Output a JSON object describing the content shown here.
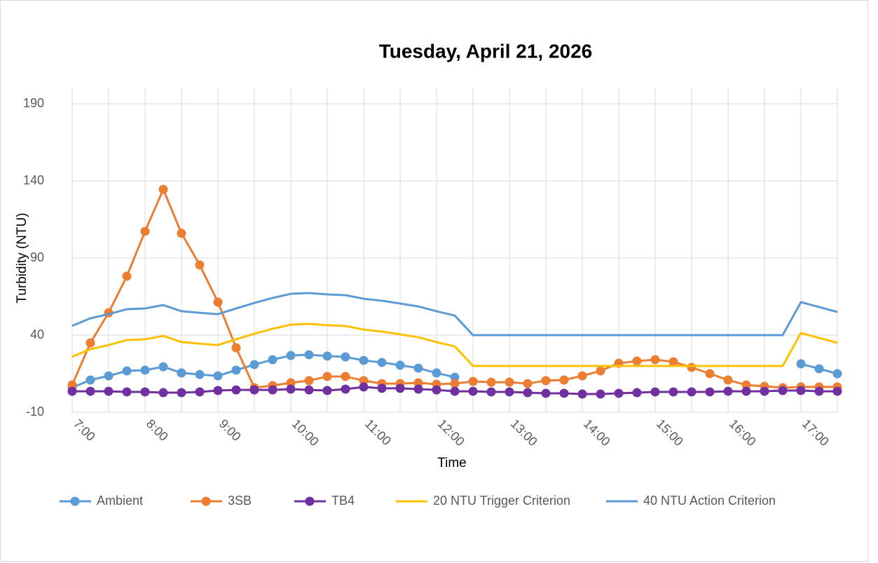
{
  "chart_data": {
    "type": "line",
    "title": "Tuesday, April 21, 2026",
    "x_label": "Time",
    "y_label": "Turbidity (NTU)",
    "categories": [
      "7:00",
      null,
      null,
      null,
      "8:00",
      null,
      null,
      null,
      "9:00",
      null,
      null,
      null,
      "10:00",
      null,
      null,
      null,
      "11:00",
      null,
      null,
      null,
      "12:00",
      null,
      null,
      null,
      "13:00",
      null,
      null,
      null,
      "14:00",
      null,
      null,
      null,
      "15:00",
      null,
      null,
      null,
      "16:00",
      null,
      null,
      null,
      "17:00",
      null,
      null
    ],
    "ylim": [
      -10,
      200
    ],
    "yticks": [
      -10,
      40,
      90,
      140,
      190
    ],
    "grid": true,
    "legend": "bottom",
    "series": [
      {
        "name": "Ambient",
        "color": "#5b9bd5",
        "marker": true,
        "values": [
          6,
          10.9,
          13.6,
          16.8,
          17.3,
          19.5,
          15.5,
          14.5,
          13.6,
          17.3,
          20.9,
          24.1,
          26.8,
          27.3,
          26.4,
          25.9,
          23.6,
          22.3,
          20.5,
          18.6,
          15.5,
          12.7,
          null,
          null,
          null,
          null,
          null,
          null,
          null,
          null,
          null,
          null,
          null,
          null,
          null,
          null,
          null,
          null,
          null,
          null,
          21.4,
          18.2,
          15
        ]
      },
      {
        "name": "3SB",
        "color": "#ed7d31",
        "marker": true,
        "values": [
          7.7,
          35,
          54.5,
          78.2,
          107.3,
          134.5,
          106,
          85.5,
          61.4,
          31.8,
          5.9,
          7.3,
          9.1,
          10.5,
          13.2,
          13.2,
          10.5,
          8.6,
          8.6,
          9.1,
          8.2,
          8.6,
          10,
          9.5,
          9.5,
          8.6,
          10.5,
          10.9,
          13.6,
          16.8,
          21.8,
          23.2,
          24.1,
          22.7,
          19.1,
          15,
          10.9,
          7.7,
          6.8,
          5.9,
          6.4,
          6.4,
          6.4
        ]
      },
      {
        "name": "TB4",
        "color": "#7030a0",
        "marker": true,
        "values": [
          3.6,
          3.6,
          3.6,
          3.2,
          3.2,
          2.7,
          2.7,
          3.2,
          4.1,
          4.5,
          4.5,
          4.5,
          5,
          4.5,
          4.1,
          5,
          6.4,
          5.5,
          5.5,
          5,
          4.5,
          3.6,
          3.6,
          3.2,
          3.2,
          2.7,
          2.3,
          2.3,
          1.8,
          1.8,
          2.3,
          2.7,
          3.2,
          3.2,
          3.2,
          3.2,
          3.6,
          3.6,
          3.6,
          4.1,
          4.1,
          3.6,
          3.6
        ]
      },
      {
        "name": "20 NTU Trigger Criterion",
        "color": "#ffc000",
        "marker": false,
        "values": [
          26,
          30.9,
          33.6,
          36.8,
          37.3,
          39.5,
          35.5,
          34.5,
          33.6,
          37.3,
          40.9,
          44.1,
          46.8,
          47.3,
          46.4,
          45.9,
          43.6,
          42.3,
          40.5,
          38.6,
          35.5,
          32.7,
          20,
          20,
          20,
          20,
          20,
          20,
          20,
          20,
          20,
          20,
          20,
          20,
          20,
          20,
          20,
          20,
          20,
          20,
          41.4,
          38.2,
          35
        ]
      },
      {
        "name": "40 NTU Action Criterion",
        "color": "#5b9bd5",
        "marker": false,
        "values": [
          46,
          50.9,
          53.6,
          56.8,
          57.3,
          59.5,
          55.5,
          54.5,
          53.6,
          57.3,
          60.9,
          64.1,
          66.8,
          67.3,
          66.4,
          65.9,
          63.6,
          62.3,
          60.5,
          58.6,
          55.5,
          52.7,
          40,
          40,
          40,
          40,
          40,
          40,
          40,
          40,
          40,
          40,
          40,
          40,
          40,
          40,
          40,
          40,
          40,
          40,
          61.4,
          58.2,
          55
        ]
      }
    ]
  }
}
